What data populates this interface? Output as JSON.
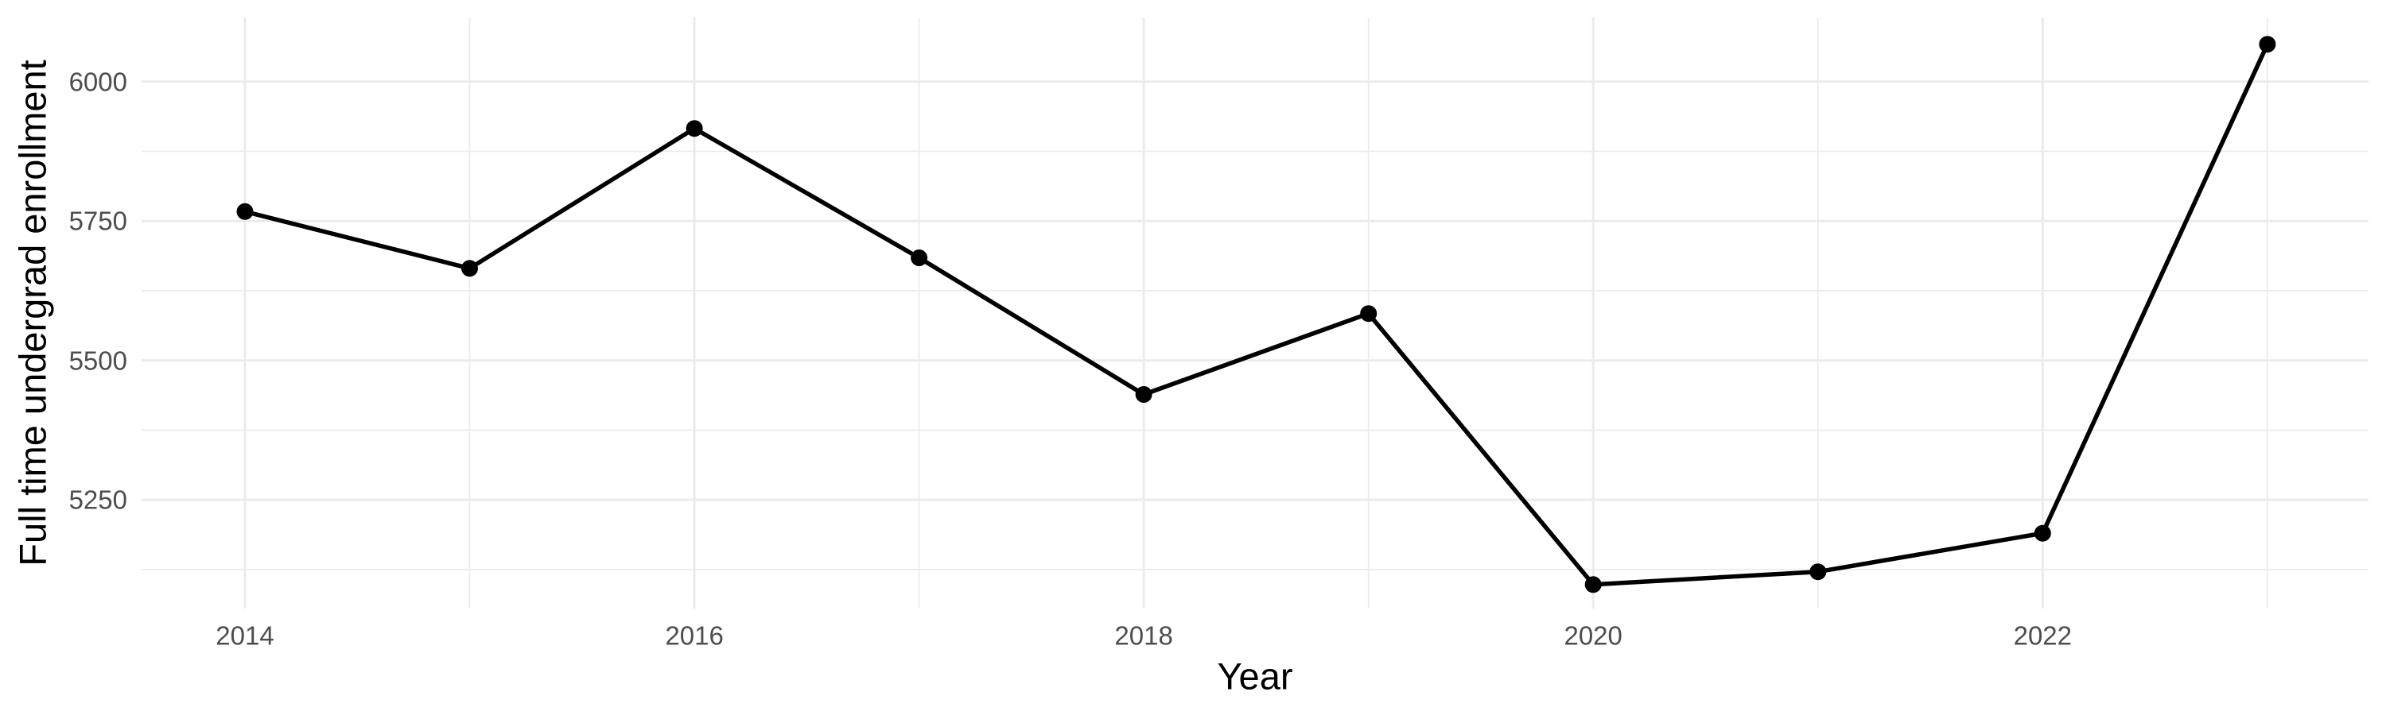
{
  "chart_data": {
    "type": "line",
    "title": "",
    "xlabel": "Year",
    "ylabel": "Full time undergrad enrollment",
    "x": [
      2014,
      2015,
      2016,
      2017,
      2018,
      2019,
      2020,
      2021,
      2022,
      2023
    ],
    "values": [
      5767,
      5665,
      5916,
      5684,
      5439,
      5584,
      5098,
      5121,
      5190,
      6067
    ],
    "series": [
      {
        "name": "Full time undergrad enrollment",
        "values": [
          5767,
          5665,
          5916,
          5684,
          5439,
          5584,
          5098,
          5121,
          5190,
          6067
        ]
      }
    ],
    "xlim": [
      2013.54,
      2023.45
    ],
    "ylim": [
      5055,
      6115
    ],
    "x_major_ticks": [
      2014,
      2016,
      2018,
      2020,
      2022
    ],
    "x_minor_ticks": [
      2015,
      2017,
      2019,
      2021,
      2023
    ],
    "y_major_ticks": [
      6000,
      5750,
      5500,
      5250
    ],
    "y_minor_ticks": [
      5875,
      5625,
      5375,
      5125
    ],
    "x_tick_labels": [
      "2014",
      "2016",
      "2018",
      "2020",
      "2022"
    ],
    "y_tick_labels": [
      "6000",
      "5750",
      "5500",
      "5250"
    ],
    "grid": "on",
    "legend": "none",
    "marker": "point",
    "colors": {
      "line": "#000000",
      "point": "#000000",
      "grid": "#EBEBEB",
      "tick_label": "#4D4D4D",
      "axis_title": "#000000",
      "background": "#FFFFFF"
    }
  }
}
